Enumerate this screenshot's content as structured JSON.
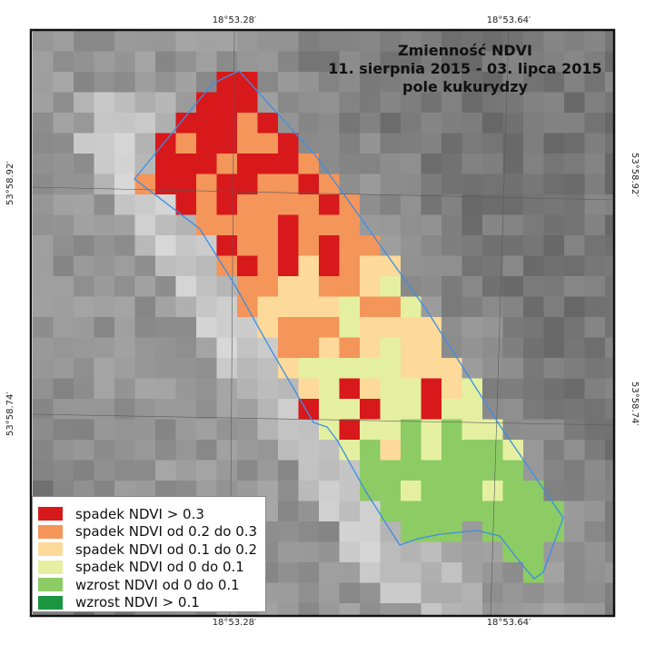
{
  "title": {
    "line1": "Zmienność NDVI",
    "line2": "11. sierpnia 2015 - 03. lipca 2015",
    "line3": "pole kukurydzy"
  },
  "coordinates": {
    "top": [
      "18°53.28′",
      "18°53.64′"
    ],
    "bottom": [
      "18°53.28′",
      "18°53.64′"
    ],
    "left": [
      "53°58.92′",
      "53°58.74′"
    ],
    "right": [
      "53°58.92′",
      "53°58.74′"
    ]
  },
  "legend": [
    {
      "label": "spadek NDVI > 0.3",
      "color": "#d7191c"
    },
    {
      "label": "spadek NDVI od 0.2 do 0.3",
      "color": "#f4955a"
    },
    {
      "label": "spadek NDVI od 0.1 do 0.2",
      "color": "#fdd99a"
    },
    {
      "label": "spadek NDVI od 0 do 0.1",
      "color": "#e4f0a0"
    },
    {
      "label": "wzrost NDVI od 0 do 0.1",
      "color": "#8dcb65"
    },
    {
      "label": "wzrost NDVI > 0.1",
      "color": "#1a9641"
    }
  ],
  "colors": {
    "field_outline": "#3a8ee6",
    "frame": "#111111",
    "graticule": "#5a5a5a"
  }
}
